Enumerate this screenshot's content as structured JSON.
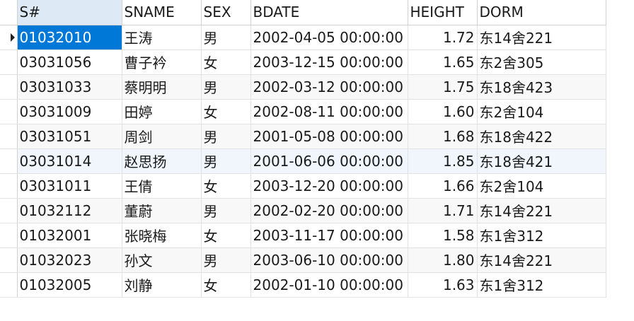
{
  "columns": [
    "S#",
    "SNAME",
    "SEX",
    "BDATE",
    "HEIGHT",
    "DORM"
  ],
  "rows": [
    {
      "sno": "01032010",
      "sname": "王涛",
      "sex": "男",
      "bdate": "2002-04-05 00:00:00",
      "height": "1.72",
      "dorm": "东14舍221"
    },
    {
      "sno": "03031056",
      "sname": "曹子衿",
      "sex": "女",
      "bdate": "2003-12-15 00:00:00",
      "height": "1.65",
      "dorm": "东2舍305"
    },
    {
      "sno": "03031033",
      "sname": "蔡明明",
      "sex": "男",
      "bdate": "2002-03-12 00:00:00",
      "height": "1.75",
      "dorm": "东18舍423"
    },
    {
      "sno": "03031009",
      "sname": "田婷",
      "sex": "女",
      "bdate": "2002-08-11 00:00:00",
      "height": "1.60",
      "dorm": "东2舍104"
    },
    {
      "sno": "03031051",
      "sname": "周剑",
      "sex": "男",
      "bdate": "2001-05-08 00:00:00",
      "height": "1.68",
      "dorm": "东18舍422"
    },
    {
      "sno": "03031014",
      "sname": "赵思扬",
      "sex": "男",
      "bdate": "2001-06-06 00:00:00",
      "height": "1.85",
      "dorm": "东18舍421"
    },
    {
      "sno": "03031011",
      "sname": "王倩",
      "sex": "女",
      "bdate": "2003-12-20 00:00:00",
      "height": "1.66",
      "dorm": "东2舍104"
    },
    {
      "sno": "01032112",
      "sname": "董蔚",
      "sex": "男",
      "bdate": "2002-02-20 00:00:00",
      "height": "1.71",
      "dorm": "东14舍221"
    },
    {
      "sno": "01032001",
      "sname": "张晓梅",
      "sex": "女",
      "bdate": "2003-11-17 00:00:00",
      "height": "1.58",
      "dorm": "东1舍312"
    },
    {
      "sno": "01032023",
      "sname": "孙文",
      "sex": "男",
      "bdate": "2003-06-10 00:00:00",
      "height": "1.80",
      "dorm": "东14舍221"
    },
    {
      "sno": "01032005",
      "sname": "刘静",
      "sex": "女",
      "bdate": "2002-01-10 00:00:00",
      "height": "1.63",
      "dorm": "东1舍312"
    }
  ]
}
